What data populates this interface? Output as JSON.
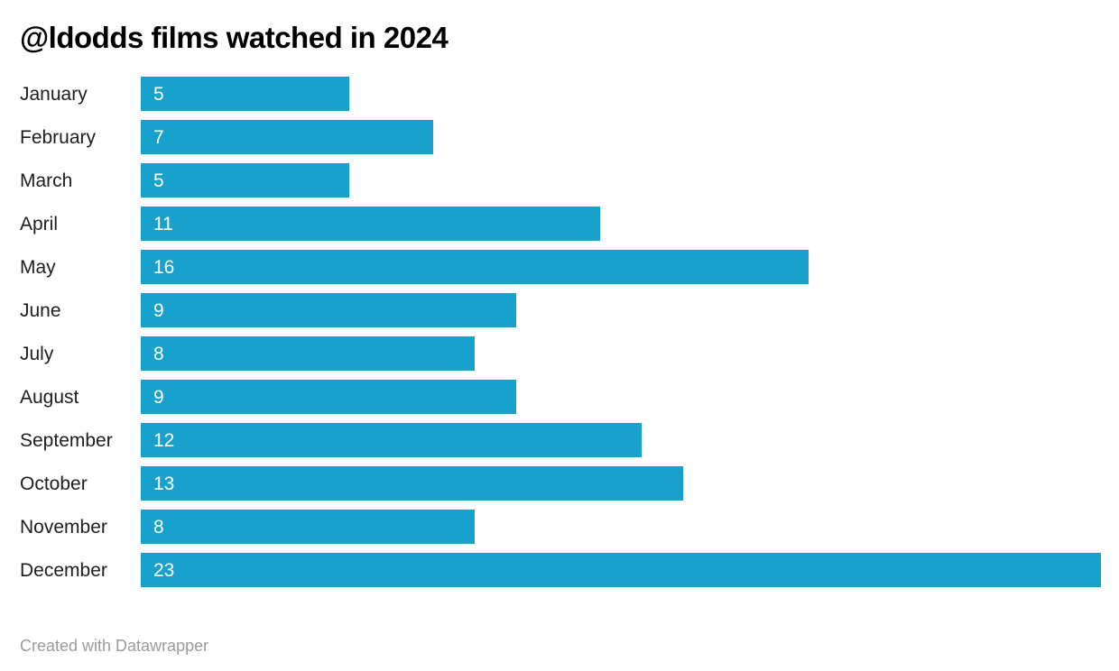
{
  "chart_data": {
    "type": "bar",
    "orientation": "horizontal",
    "title": "@ldodds films watched in 2024",
    "categories": [
      "January",
      "February",
      "March",
      "April",
      "May",
      "June",
      "July",
      "August",
      "September",
      "October",
      "November",
      "December"
    ],
    "values": [
      5,
      7,
      5,
      11,
      16,
      9,
      8,
      9,
      12,
      13,
      8,
      23
    ],
    "xlabel": "",
    "ylabel": "",
    "xlim": [
      0,
      23
    ],
    "grid": false,
    "legend": false,
    "value_labels": "inside-left",
    "bar_color": "#18a1cd",
    "value_label_color": "#ffffff"
  },
  "footer": {
    "attribution": "Created with Datawrapper"
  },
  "colors": {
    "bar": "#18a1cd",
    "title": "#000000",
    "category_label": "#1d1d1d",
    "footer_text": "#9b9b9b",
    "background": "#ffffff"
  }
}
